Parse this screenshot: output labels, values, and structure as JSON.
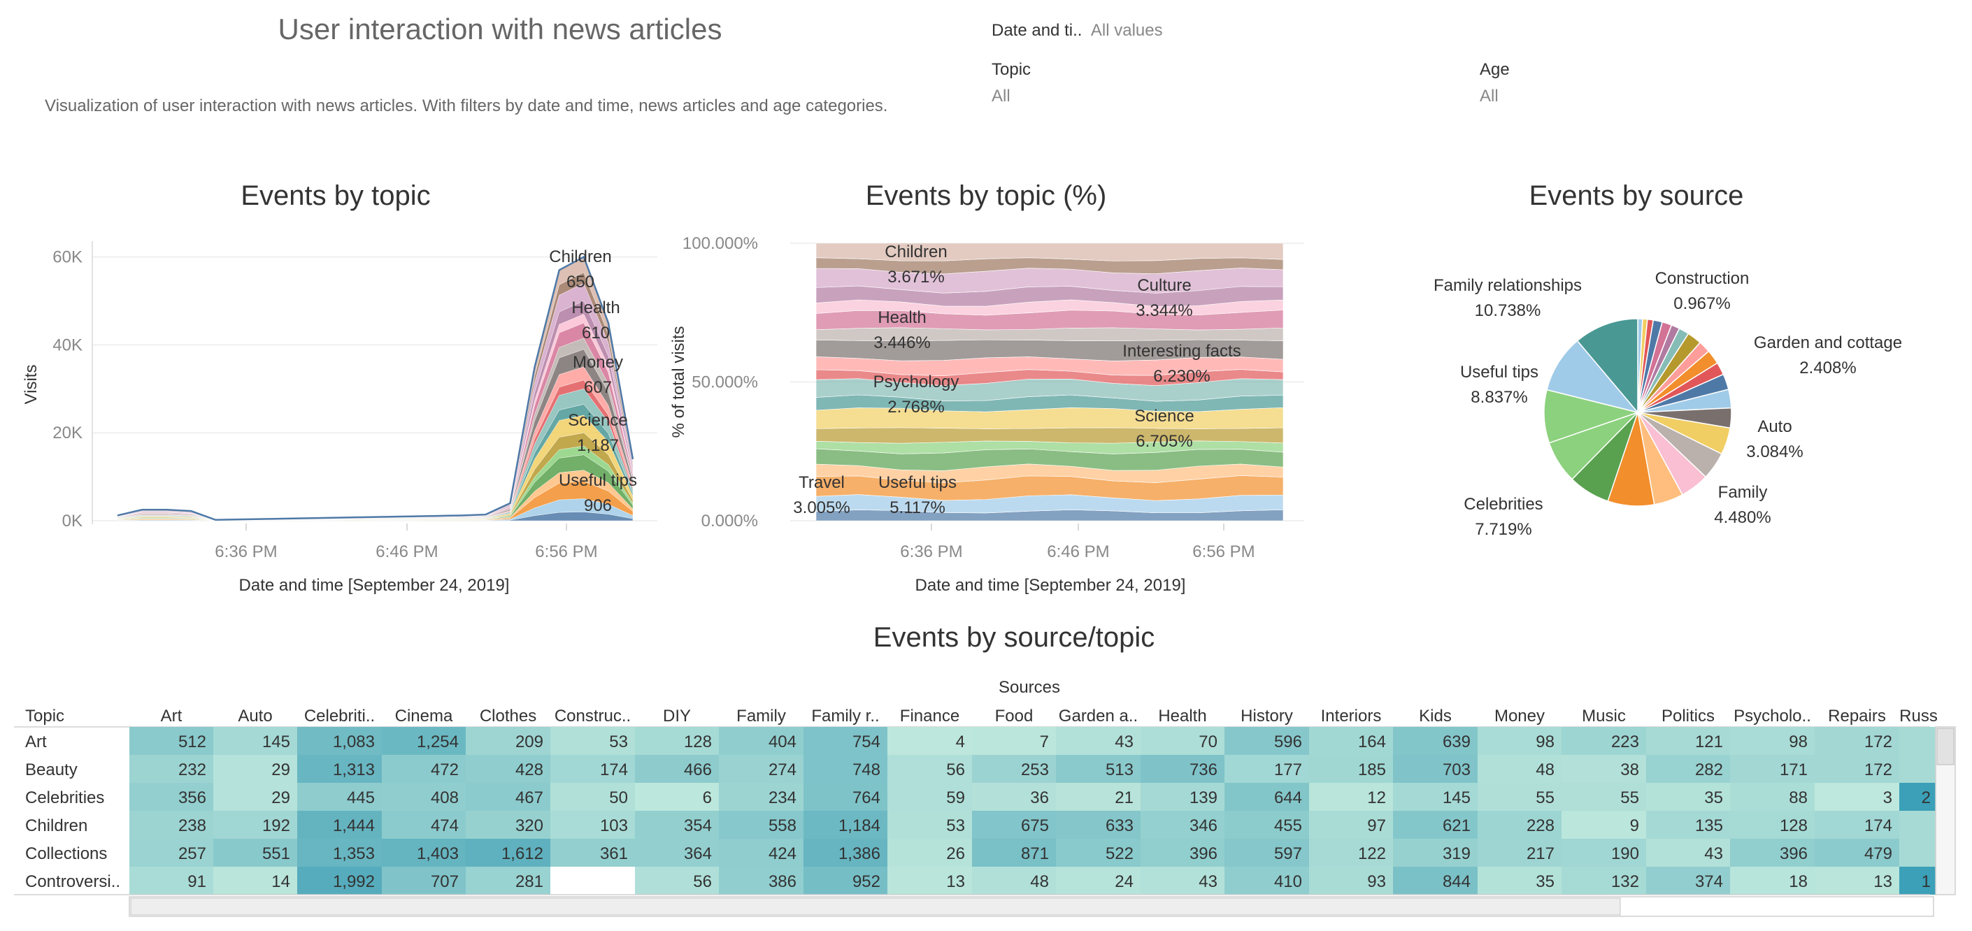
{
  "header": {
    "title": "User interaction with news articles",
    "subtitle": "Visualization of user interaction with news articles. With filters by date and time, news articles and age categories."
  },
  "filters": {
    "date": {
      "label": "Date and ti..",
      "value": "All values"
    },
    "topic": {
      "label": "Topic",
      "value": "All"
    },
    "age": {
      "label": "Age",
      "value": "All"
    }
  },
  "colors": {
    "palette": [
      "#4e79a7",
      "#a0cbe8",
      "#f28e2b",
      "#ffbe7d",
      "#59a14f",
      "#8cd17d",
      "#b6992d",
      "#f1ce63",
      "#499894",
      "#86bcb6",
      "#e15759",
      "#ff9d9a",
      "#79706e",
      "#bab0ac",
      "#d37295",
      "#fabfd2",
      "#b07aa1",
      "#d4a6c8",
      "#9d7660",
      "#d7b5a6"
    ]
  },
  "chart_data": [
    {
      "type": "area",
      "title": "Events by topic",
      "xlabel": "Date and time [September 24, 2019]",
      "ylabel": "Visits",
      "x_ticks": [
        "6:36 PM",
        "6:46 PM",
        "6:56 PM"
      ],
      "y_ticks": [
        "0K",
        "20K",
        "40K",
        "60K"
      ],
      "ylim": [
        0,
        62000
      ],
      "series_total": [
        1200,
        2500,
        2500,
        2200,
        200,
        300,
        400,
        500,
        600,
        700,
        800,
        900,
        1000,
        1100,
        1200,
        1400,
        4000,
        35000,
        57000,
        60000,
        45000,
        14000
      ],
      "annotations": [
        {
          "label": "Children",
          "value": "650"
        },
        {
          "label": "Health",
          "value": "610"
        },
        {
          "label": "Money",
          "value": "607"
        },
        {
          "label": "Science",
          "value": "1,187"
        },
        {
          "label": "Useful tips",
          "value": "906"
        }
      ]
    },
    {
      "type": "area",
      "title": "Events by topic (%)",
      "xlabel": "Date and time [September 24, 2019]",
      "ylabel": "% of total visits",
      "x_ticks": [
        "6:36 PM",
        "6:46 PM",
        "6:56 PM"
      ],
      "y_ticks": [
        "0.000%",
        "50.000%",
        "100.000%"
      ],
      "ylim": [
        0,
        100
      ],
      "annotations": [
        {
          "label": "Children",
          "value": "3.671%"
        },
        {
          "label": "Health",
          "value": "3.446%"
        },
        {
          "label": "Psychology",
          "value": "2.768%"
        },
        {
          "label": "Travel",
          "value": "3.005%"
        },
        {
          "label": "Useful tips",
          "value": "5.117%"
        },
        {
          "label": "Culture",
          "value": "3.344%"
        },
        {
          "label": "Interesting facts",
          "value": "6.230%"
        },
        {
          "label": "Science",
          "value": "6.705%"
        }
      ]
    },
    {
      "type": "pie",
      "title": "Events by source",
      "slices": [
        {
          "label": "",
          "value": 0.8
        },
        {
          "label": "",
          "value": 0.8
        },
        {
          "label": "Construction",
          "value": 0.967
        },
        {
          "label": "",
          "value": 1.5
        },
        {
          "label": "",
          "value": 1.6
        },
        {
          "label": "",
          "value": 1.4
        },
        {
          "label": "",
          "value": 1.7
        },
        {
          "label": "Garden and cottage",
          "value": 2.408
        },
        {
          "label": "",
          "value": 2.0
        },
        {
          "label": "",
          "value": 2.4
        },
        {
          "label": "",
          "value": 2.1
        },
        {
          "label": "",
          "value": 2.6
        },
        {
          "label": "Auto",
          "value": 3.084
        },
        {
          "label": "",
          "value": 3.3
        },
        {
          "label": "Family",
          "value": 4.48
        },
        {
          "label": "",
          "value": 4.6
        },
        {
          "label": "",
          "value": 4.8
        },
        {
          "label": "",
          "value": 4.9
        },
        {
          "label": "Celebrities",
          "value": 7.719
        },
        {
          "label": "",
          "value": 6.9
        },
        {
          "label": "",
          "value": 7.1
        },
        {
          "label": "Useful tips",
          "value": 8.837
        },
        {
          "label": "",
          "value": 9.6
        },
        {
          "label": "Family relationships",
          "value": 10.738
        }
      ],
      "labels_shown": [
        {
          "label": "Family relationships",
          "value": "10.738%"
        },
        {
          "label": "Construction",
          "value": "0.967%"
        },
        {
          "label": "Garden and cottage",
          "value": "2.408%"
        },
        {
          "label": "Useful tips",
          "value": "8.837%"
        },
        {
          "label": "Auto",
          "value": "3.084%"
        },
        {
          "label": "Family",
          "value": "4.480%"
        },
        {
          "label": "Celebrities",
          "value": "7.719%"
        }
      ]
    },
    {
      "type": "heatmap",
      "title": "Events by source/topic",
      "col_group_label": "Sources",
      "row_header": "Topic",
      "columns": [
        "Art",
        "Auto",
        "Celebriti..",
        "Cinema",
        "Clothes",
        "Construc..",
        "DIY",
        "Family",
        "Family r..",
        "Finance",
        "Food",
        "Garden a..",
        "Health",
        "History",
        "Interiors",
        "Kids",
        "Money",
        "Music",
        "Politics",
        "Psycholo..",
        "Repairs",
        "Russ"
      ],
      "rows": [
        {
          "topic": "Art",
          "values": [
            "512",
            "145",
            "1,083",
            "1,254",
            "209",
            "53",
            "128",
            "404",
            "754",
            "4",
            "7",
            "43",
            "70",
            "596",
            "164",
            "639",
            "98",
            "223",
            "121",
            "98",
            "172",
            ""
          ]
        },
        {
          "topic": "Beauty",
          "values": [
            "232",
            "29",
            "1,313",
            "472",
            "428",
            "174",
            "466",
            "274",
            "748",
            "56",
            "253",
            "513",
            "736",
            "177",
            "185",
            "703",
            "48",
            "38",
            "282",
            "171",
            "172",
            ""
          ]
        },
        {
          "topic": "Celebrities",
          "values": [
            "356",
            "29",
            "445",
            "408",
            "467",
            "50",
            "6",
            "234",
            "764",
            "59",
            "36",
            "21",
            "139",
            "644",
            "12",
            "145",
            "55",
            "55",
            "35",
            "88",
            "3",
            "2"
          ]
        },
        {
          "topic": "Children",
          "values": [
            "238",
            "192",
            "1,444",
            "474",
            "320",
            "103",
            "354",
            "558",
            "1,184",
            "53",
            "675",
            "633",
            "346",
            "455",
            "97",
            "621",
            "228",
            "9",
            "135",
            "128",
            "174",
            ""
          ]
        },
        {
          "topic": "Collections",
          "values": [
            "257",
            "551",
            "1,353",
            "1,403",
            "1,612",
            "361",
            "364",
            "424",
            "1,386",
            "26",
            "871",
            "522",
            "396",
            "597",
            "122",
            "319",
            "217",
            "190",
            "43",
            "396",
            "479",
            ""
          ]
        },
        {
          "topic": "Controversi..",
          "values": [
            "91",
            "14",
            "1,992",
            "707",
            "281",
            "",
            "56",
            "386",
            "952",
            "13",
            "48",
            "24",
            "43",
            "410",
            "93",
            "844",
            "35",
            "132",
            "374",
            "18",
            "13",
            "1"
          ]
        }
      ]
    }
  ]
}
